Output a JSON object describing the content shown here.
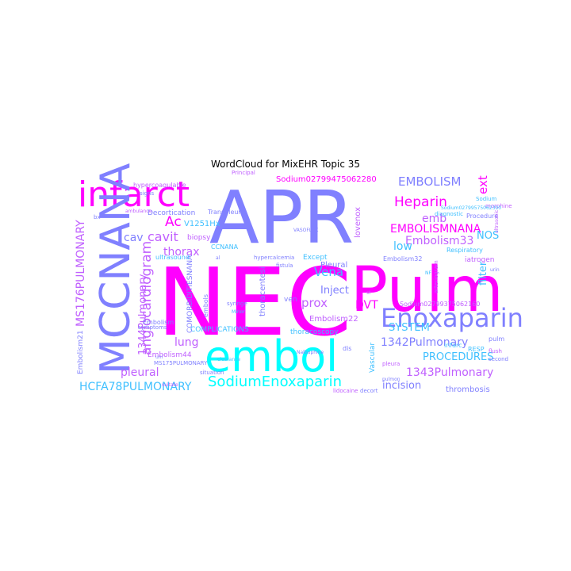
{
  "chart_data": {
    "type": "wordcloud",
    "title": "WordCloud for MixEHR Topic 35",
    "palette": [
      "#ff00ff",
      "#8080ff",
      "#00ffff",
      "#c060ff",
      "#40c0ff"
    ],
    "words": [
      {
        "text": "NEC",
        "color": "#ff00ff"
      },
      {
        "text": "APR",
        "color": "#8080ff"
      },
      {
        "text": "embol",
        "color": "#00ffff"
      },
      {
        "text": "Pulm",
        "color": "#ff00ff"
      },
      {
        "text": "infarct",
        "color": "#ff00ff"
      },
      {
        "text": "MCCNANA",
        "color": "#8080ff"
      },
      {
        "text": "Enoxaparin",
        "color": "#8080ff"
      },
      {
        "text": "SodiumEnoxaparin",
        "color": "#00ffff"
      },
      {
        "text": "angiocardiogram",
        "color": "#c060ff"
      },
      {
        "text": "EMBOLISMNANA",
        "color": "#ff00ff"
      },
      {
        "text": "EMBOLISM",
        "color": "#8080ff"
      },
      {
        "text": "Heparin",
        "color": "#ff00ff"
      },
      {
        "text": "Embolism33",
        "color": "#c060ff"
      },
      {
        "text": "Ac",
        "color": "#ff00ff"
      },
      {
        "text": "cavit",
        "color": "#c060ff"
      },
      {
        "text": "cav",
        "color": "#8080ff"
      },
      {
        "text": "thorax",
        "color": "#c060ff"
      },
      {
        "text": "lung",
        "color": "#c060ff"
      },
      {
        "text": "pleural",
        "color": "#c060ff"
      },
      {
        "text": "HCFA78PULMONARY",
        "color": "#40c0ff"
      },
      {
        "text": "MS176PULMONARY",
        "color": "#c060ff"
      },
      {
        "text": "1344Pulmonary",
        "color": "#c060ff"
      },
      {
        "text": "1342Pulmonary",
        "color": "#8080ff"
      },
      {
        "text": "1343Pulmonary",
        "color": "#c060ff"
      },
      {
        "text": "PROCEDURES",
        "color": "#40c0ff"
      },
      {
        "text": "SYSTEM",
        "color": "#40c0ff"
      },
      {
        "text": "incision",
        "color": "#8080ff"
      },
      {
        "text": "thrombosis",
        "color": "#8080ff"
      },
      {
        "text": "prox",
        "color": "#c060ff"
      },
      {
        "text": "Vena",
        "color": "#40c0ff"
      },
      {
        "text": "Inject",
        "color": "#8080ff"
      },
      {
        "text": "DVT",
        "color": "#ff00ff"
      },
      {
        "text": "emb",
        "color": "#c060ff"
      },
      {
        "text": "low",
        "color": "#40c0ff"
      },
      {
        "text": "NOS",
        "color": "#40c0ff"
      },
      {
        "text": "filter",
        "color": "#40c0ff"
      },
      {
        "text": "ext",
        "color": "#ff00ff"
      },
      {
        "text": "Sodium02799475062280",
        "color": "#ff00ff"
      },
      {
        "text": "Sodium02799375062160",
        "color": "#c060ff"
      },
      {
        "text": "Embolism22",
        "color": "#c060ff"
      },
      {
        "text": "Embolism44",
        "color": "#c060ff"
      },
      {
        "text": "Embolism21",
        "color": "#8080ff"
      },
      {
        "text": "Embolism32",
        "color": "#8080ff"
      },
      {
        "text": "COMPLICATIONS",
        "color": "#40c0ff"
      },
      {
        "text": "Decortication",
        "color": "#8080ff"
      },
      {
        "text": "Transpleura",
        "color": "#8080ff"
      },
      {
        "text": "Vascular",
        "color": "#40c0ff"
      },
      {
        "text": "Respiratory",
        "color": "#40c0ff"
      },
      {
        "text": "iatrogen",
        "color": "#c060ff"
      },
      {
        "text": "thoracentesi",
        "color": "#8080ff"
      },
      {
        "text": "thoracoscopy",
        "color": "#40c0ff"
      },
      {
        "text": "Pleural",
        "color": "#8080ff"
      },
      {
        "text": "lovenox",
        "color": "#c060ff"
      },
      {
        "text": "biopsy",
        "color": "#c060ff"
      },
      {
        "text": "V1251Hx",
        "color": "#40c0ff"
      },
      {
        "text": "Except",
        "color": "#40c0ff"
      },
      {
        "text": "ven",
        "color": "#8080ff"
      },
      {
        "text": "embols",
        "color": "#8080ff"
      },
      {
        "text": "Embolism",
        "color": "#8080ff"
      },
      {
        "text": "MS175PULMONARY",
        "color": "#8080ff"
      },
      {
        "text": "COMORBIDITIESNANA",
        "color": "#8080ff"
      },
      {
        "text": "CCNANA",
        "color": "#40c0ff"
      },
      {
        "text": "infarc",
        "color": "#40c0ff"
      },
      {
        "text": "RESP",
        "color": "#40c0ff"
      },
      {
        "text": "pulm",
        "color": "#8080ff"
      },
      {
        "text": "dis",
        "color": "#8080ff"
      },
      {
        "text": "Procedure",
        "color": "#8080ff"
      },
      {
        "text": "ultrasound",
        "color": "#40c0ff"
      },
      {
        "text": "hypercoagulable",
        "color": "#c060ff"
      },
      {
        "text": "syringe",
        "color": "#8080ff"
      },
      {
        "text": "Sodium",
        "color": "#40c0ff"
      },
      {
        "text": "flush",
        "color": "#c060ff"
      },
      {
        "text": "lidocaine",
        "color": "#c060ff"
      },
      {
        "text": "decort",
        "color": "#8080ff"
      },
      {
        "text": "arteriogram",
        "color": "#c060ff"
      },
      {
        "text": "second",
        "color": "#8080ff"
      },
      {
        "text": "fistula",
        "color": "#8080ff"
      },
      {
        "text": "pleura",
        "color": "#c060ff"
      },
      {
        "text": "symptoms",
        "color": "#8080ff"
      },
      {
        "text": "signs",
        "color": "#8080ff"
      },
      {
        "text": "situation",
        "color": "#8080ff"
      },
      {
        "text": "hypercalcemia",
        "color": "#8080ff"
      },
      {
        "text": "Principal",
        "color": "#c060ff"
      },
      {
        "text": "diagnostic",
        "color": "#40c0ff"
      },
      {
        "text": "morphine",
        "color": "#c060ff"
      },
      {
        "text": "Sodium02799575062300",
        "color": "#40c0ff"
      },
      {
        "text": "Nalbuphine",
        "color": "#8080ff"
      },
      {
        "text": "ultrasonic",
        "color": "#c060ff"
      },
      {
        "text": "VASOFLAK",
        "color": "#8080ff"
      },
      {
        "text": "Minor",
        "color": "#40c0ff"
      },
      {
        "text": "st",
        "color": "#c060ff"
      },
      {
        "text": "NF",
        "color": "#40c0ff"
      },
      {
        "text": "urin",
        "color": "#8080ff"
      },
      {
        "text": "uni",
        "color": "#8080ff"
      },
      {
        "text": "ambulance",
        "color": "#c060ff"
      },
      {
        "text": "clearance",
        "color": "#40c0ff"
      },
      {
        "text": "pulmon",
        "color": "#8080ff"
      },
      {
        "text": "bx",
        "color": "#8080ff"
      },
      {
        "text": "al",
        "color": "#8080ff"
      },
      {
        "text": "suitate",
        "color": "#c060ff"
      }
    ]
  }
}
